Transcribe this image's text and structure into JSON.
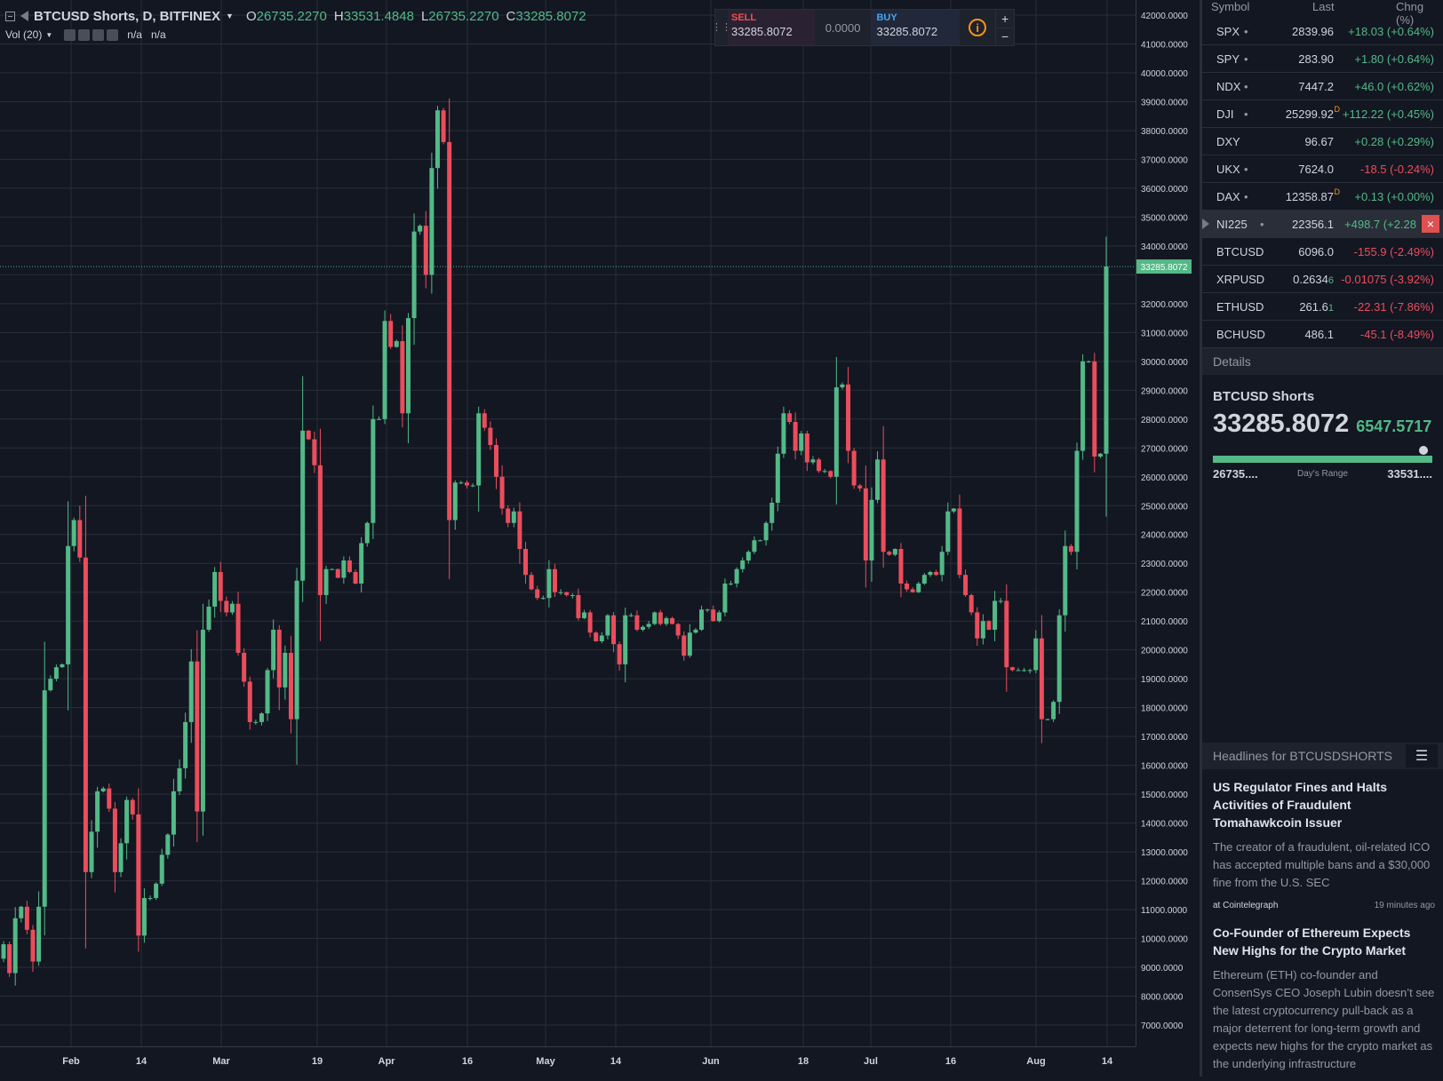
{
  "legend": {
    "symbol": "BTCUSD Shorts, D, BITFINEX",
    "open_label": "O",
    "open": "26735.2270",
    "high_label": "H",
    "high": "33531.4848",
    "low_label": "L",
    "low": "26735.2270",
    "close_label": "C",
    "close": "33285.8072",
    "volume_label": "Vol (20)",
    "volume_values": [
      "n/a",
      "n/a"
    ]
  },
  "trade": {
    "sell_label": "SELL",
    "sell_price": "33285.8072",
    "spread": "0.0000",
    "buy_label": "BUY",
    "buy_price": "33285.8072",
    "info_glyph": "i",
    "plus": "+",
    "minus": "−"
  },
  "colors": {
    "up": "#53b987",
    "down": "#eb4d5c",
    "background": "#131722",
    "grid": "#2a2e39",
    "text": "#d1d4dc"
  },
  "chart_data": {
    "type": "candlestick",
    "price_axis": {
      "min": 7000,
      "max": 42000,
      "step": 1000,
      "labels": [
        "42000.0000",
        "41000.0000",
        "40000.0000",
        "39000.0000",
        "38000.0000",
        "37000.0000",
        "36000.0000",
        "35000.0000",
        "34000.0000",
        "33000.0000",
        "32000.0000",
        "31000.0000",
        "30000.0000",
        "29000.0000",
        "28000.0000",
        "27000.0000",
        "26000.0000",
        "25000.0000",
        "24000.0000",
        "23000.0000",
        "22000.0000",
        "21000.0000",
        "20000.0000",
        "19000.0000",
        "18000.0000",
        "17000.0000",
        "16000.0000",
        "15000.0000",
        "14000.0000",
        "13000.0000",
        "12000.0000",
        "11000.0000",
        "10000.0000",
        "9000.0000",
        "8000.0000",
        "7000.0000"
      ]
    },
    "time_axis": [
      "Feb",
      "14",
      "Mar",
      "19",
      "Apr",
      "16",
      "May",
      "14",
      "Jun",
      "18",
      "Jul",
      "16",
      "Aug",
      "14"
    ],
    "last_price_label": "33285.8072",
    "last_price": 33285.8072,
    "closes": [
      9800,
      8800,
      10700,
      11100,
      10300,
      9200,
      11100,
      18600,
      19000,
      19400,
      19500,
      23600,
      24500,
      23200,
      12300,
      13700,
      15100,
      15200,
      14500,
      12300,
      13300,
      14800,
      14300,
      10100,
      11400,
      11400,
      11900,
      12900,
      13600,
      15100,
      15900,
      17500,
      19600,
      14400,
      20700,
      21500,
      22700,
      21700,
      21300,
      21600,
      19900,
      18900,
      17500,
      17500,
      17800,
      19300,
      20700,
      18700,
      19900,
      17600,
      22400,
      27600,
      27300,
      26400,
      21900,
      22800,
      22800,
      22500,
      23100,
      22700,
      22300,
      23700,
      24400,
      28000,
      28000,
      31400,
      30500,
      30700,
      28200,
      31500,
      34500,
      34700,
      33000,
      36700,
      38700,
      37600,
      24500,
      25800,
      25800,
      25700,
      25700,
      28200,
      27700,
      27100,
      26000,
      24900,
      24400,
      24800,
      23500,
      22600,
      22100,
      21800,
      21800,
      22800,
      22000,
      22000,
      21900,
      21900,
      21100,
      21300,
      20600,
      20300,
      20500,
      21200,
      20200,
      19500,
      21200,
      21200,
      20700,
      20800,
      20900,
      21300,
      20900,
      21100,
      20900,
      20500,
      19800,
      20600,
      20700,
      21400,
      21400,
      21000,
      21300,
      22300,
      22300,
      22800,
      23100,
      23400,
      23800,
      23800,
      24400,
      25100,
      26800,
      28200,
      27900,
      26900,
      27500,
      26500,
      26600,
      26200,
      26200,
      26000,
      29100,
      29200,
      26900,
      25700,
      25600,
      23100,
      25200,
      26600,
      23400,
      23300,
      23500,
      22300,
      22100,
      22000,
      22300,
      22600,
      22700,
      22600,
      23400,
      24800,
      24900,
      22600,
      21900,
      21300,
      20400,
      21000,
      20700,
      21700,
      21700,
      19400,
      19300,
      19300,
      19300,
      19300,
      20400,
      17600,
      17600,
      18200,
      21200,
      23600,
      23400,
      26900,
      30000,
      30000,
      26700,
      26800,
      33286
    ],
    "start_open": 9300
  },
  "watchlist": {
    "headers": {
      "symbol": "Symbol",
      "last": "Last",
      "change": "Chng (%)"
    },
    "rows": [
      {
        "symbol": "SPX",
        "dot": "•",
        "last": "2839.96",
        "delay": "",
        "change": "+18.03 (+0.64%)",
        "dir": "up"
      },
      {
        "symbol": "SPY",
        "dot": "•",
        "last": "283.90",
        "delay": "",
        "change": "+1.80 (+0.64%)",
        "dir": "up"
      },
      {
        "symbol": "NDX",
        "dot": "•",
        "last": "7447.2",
        "delay": "",
        "change": "+46.0 (+0.62%)",
        "dir": "up"
      },
      {
        "symbol": "DJI",
        "dot": "•",
        "last": "25299.92",
        "delay": "D",
        "change": "+112.22 (+0.45%)",
        "dir": "up"
      },
      {
        "symbol": "DXY",
        "dot": "",
        "last": "96.67",
        "delay": "",
        "change": "+0.28 (+0.29%)",
        "dir": "up"
      },
      {
        "symbol": "UKX",
        "dot": "•",
        "last": "7624.0",
        "delay": "",
        "change": "-18.5 (-0.24%)",
        "dir": "down"
      },
      {
        "symbol": "DAX",
        "dot": "•",
        "last": "12358.87",
        "delay": "D",
        "change": "+0.13 (+0.00%)",
        "dir": "up"
      },
      {
        "symbol": "NI225",
        "dot": "•",
        "last": "22356.1",
        "delay": "",
        "change": "+498.7 (+2.28",
        "dir": "up"
      },
      {
        "symbol": "BTCUSD",
        "dot": "",
        "last": "6096.0",
        "delay": "",
        "change": "-155.9 (-2.49%)",
        "dir": "down"
      },
      {
        "symbol": "XRPUSD",
        "dot": "",
        "last": "0.2634",
        "last_tail": "6",
        "delay": "",
        "change": "-0.01075 (-3.92%)",
        "dir": "down"
      },
      {
        "symbol": "ETHUSD",
        "dot": "",
        "last": "261.6",
        "last_tail": "1",
        "delay": "",
        "change": "-22.31 (-7.86%)",
        "dir": "down"
      },
      {
        "symbol": "BCHUSD",
        "dot": "",
        "last": "486.1",
        "delay": "",
        "change": "-45.1 (-8.49%)",
        "dir": "down"
      }
    ],
    "remove_glyph": "×"
  },
  "details": {
    "section_label": "Details",
    "title": "BTCUSD Shorts",
    "price": "33285.8072",
    "change": "6547.5717",
    "range_low": "26735....",
    "range_label": "Day's Range",
    "range_high": "33531....",
    "range_position": 0.96
  },
  "headlines": {
    "section_label": "Headlines for BTCUSDSHORTS",
    "list_glyph": "☰",
    "items": [
      {
        "title": "US Regulator Fines and Halts Activities of Fraudulent Tomahawkcoin Issuer",
        "body": "The creator of a fraudulent, oil-related ICO has accepted multiple bans and a $30,000 fine from the U.S. SEC",
        "source": "at Cointelegraph",
        "time": "19 minutes ago"
      },
      {
        "title": "Co-Founder of Ethereum Expects New Highs for the Crypto Market",
        "body": "Ethereum (ETH) co-founder and ConsenSys CEO Joseph Lubin doesn’t see the latest cryptocurrency pull-back as a major deterrent for long-term growth and expects new highs for the crypto market as the underlying infrastructure"
      }
    ]
  }
}
